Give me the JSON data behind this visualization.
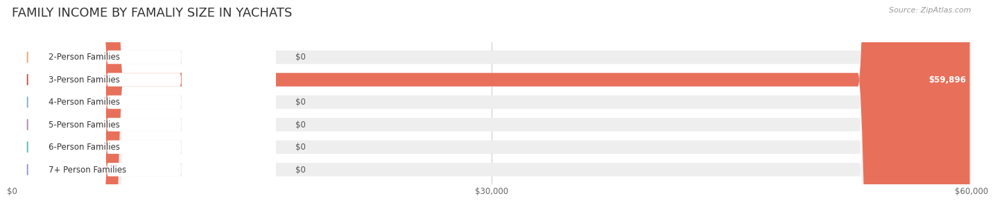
{
  "title": "FAMILY INCOME BY FAMALIY SIZE IN YACHATS",
  "source": "Source: ZipAtlas.com",
  "categories": [
    "2-Person Families",
    "3-Person Families",
    "4-Person Families",
    "5-Person Families",
    "6-Person Families",
    "7+ Person Families"
  ],
  "values": [
    0,
    59896,
    0,
    0,
    0,
    0
  ],
  "max_value": 60000,
  "bar_colors": [
    "#f5c9a0",
    "#e8705a",
    "#adc6e8",
    "#d4aacc",
    "#7ecec4",
    "#b0b8e8"
  ],
  "dot_colors": [
    "#e8a070",
    "#cc4433",
    "#7aaad0",
    "#b080aa",
    "#50b8aa",
    "#8890cc"
  ],
  "bar_bg_color": "#eeeeee",
  "value_labels": [
    "$0",
    "$59,896",
    "$0",
    "$0",
    "$0",
    "$0"
  ],
  "xtick_labels": [
    "$0",
    "$30,000",
    "$60,000"
  ],
  "xtick_values": [
    0,
    30000,
    60000
  ],
  "background_color": "#ffffff",
  "title_fontsize": 13,
  "label_fontsize": 8.5,
  "value_fontsize": 8.5,
  "source_fontsize": 8
}
